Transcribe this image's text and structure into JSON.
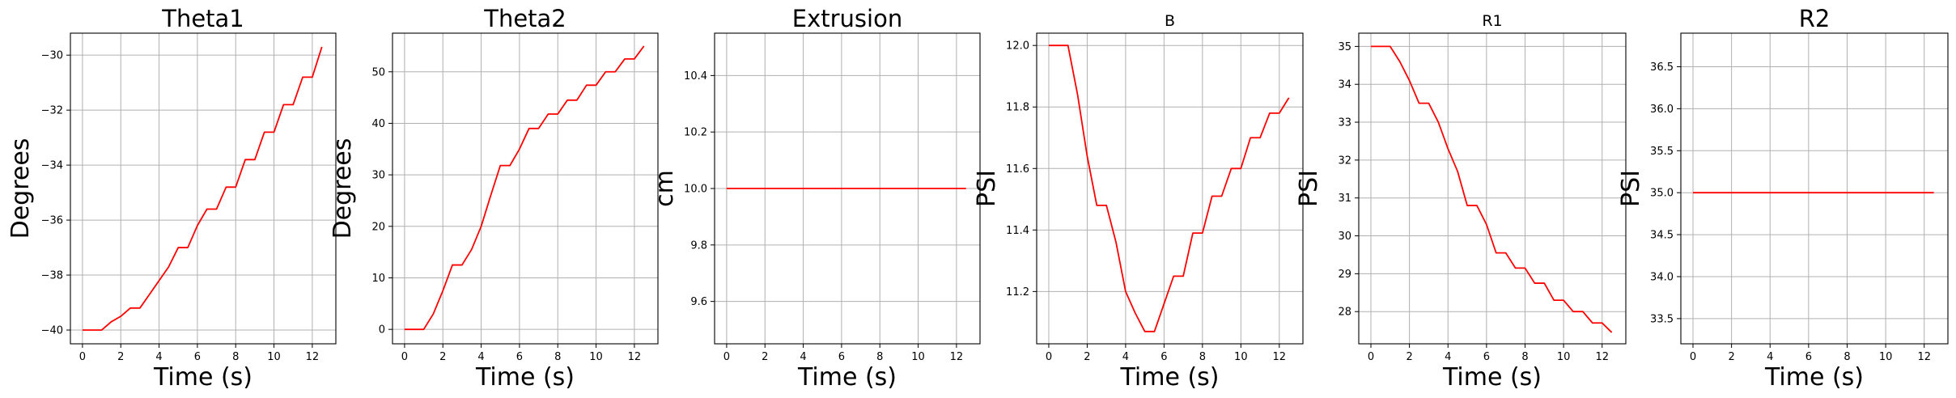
{
  "chart_data": [
    {
      "type": "line",
      "title": "Theta1",
      "xlabel": "Time (s)",
      "ylabel": "Degrees",
      "xlim": [
        -0.63,
        13.23
      ],
      "ylim": [
        -40.5,
        -29.2
      ],
      "xticks": [
        0,
        2,
        4,
        6,
        8,
        10,
        12
      ],
      "xtick_labels": [
        "0",
        "2",
        "4",
        "6",
        "8",
        "10",
        "12"
      ],
      "yticks": [
        -40,
        -38,
        -36,
        -34,
        -32,
        -30
      ],
      "ytick_labels": [
        "−40",
        "−38",
        "−36",
        "−34",
        "−32",
        "−30"
      ],
      "grid": true,
      "series": [
        {
          "color": "#ff0000",
          "x": [
            0,
            0.5,
            1,
            1.5,
            2,
            2.5,
            3,
            3.5,
            4,
            4.5,
            5,
            5.5,
            6,
            6.5,
            7,
            7.5,
            8,
            8.5,
            9,
            9.5,
            10,
            10.5,
            11,
            11.5,
            12,
            12.5
          ],
          "y": [
            -40,
            -40,
            -40,
            -39.7,
            -39.5,
            -39.2,
            -39.2,
            -38.7,
            -38.2,
            -37.7,
            -37.0,
            -37.0,
            -36.2,
            -35.6,
            -35.6,
            -34.8,
            -34.8,
            -33.8,
            -33.8,
            -32.8,
            -32.8,
            -31.8,
            -31.8,
            -30.8,
            -30.8,
            -29.7
          ]
        }
      ]
    },
    {
      "type": "line",
      "title": "Theta2",
      "xlabel": "Time (s)",
      "ylabel": "Degrees",
      "xlim": [
        -0.63,
        13.23
      ],
      "ylim": [
        -2.8,
        57.5
      ],
      "xticks": [
        0,
        2,
        4,
        6,
        8,
        10,
        12
      ],
      "xtick_labels": [
        "0",
        "2",
        "4",
        "6",
        "8",
        "10",
        "12"
      ],
      "yticks": [
        0,
        10,
        20,
        30,
        40,
        50
      ],
      "ytick_labels": [
        "0",
        "10",
        "20",
        "30",
        "40",
        "50"
      ],
      "grid": true,
      "series": [
        {
          "color": "#ff0000",
          "x": [
            0,
            0.5,
            1,
            1.5,
            2,
            2.5,
            3,
            3.5,
            4,
            4.5,
            5,
            5.5,
            6,
            6.5,
            7,
            7.5,
            8,
            8.5,
            9,
            9.5,
            10,
            10.5,
            11,
            11.5,
            12,
            12.5
          ],
          "y": [
            0,
            0,
            0,
            3,
            7.5,
            12.5,
            12.5,
            15.5,
            20,
            26,
            31.8,
            31.8,
            35,
            39,
            39,
            41.8,
            41.8,
            44.5,
            44.5,
            47.4,
            47.4,
            50,
            50,
            52.5,
            52.5,
            55
          ]
        }
      ]
    },
    {
      "type": "line",
      "title": "Extrusion",
      "xlabel": "Time (s)",
      "ylabel": "cm",
      "xlim": [
        -0.63,
        13.23
      ],
      "ylim": [
        9.45,
        10.55
      ],
      "xticks": [
        0,
        2,
        4,
        6,
        8,
        10,
        12
      ],
      "xtick_labels": [
        "0",
        "2",
        "4",
        "6",
        "8",
        "10",
        "12"
      ],
      "yticks": [
        9.6,
        9.8,
        10.0,
        10.2,
        10.4
      ],
      "ytick_labels": [
        "9.6",
        "9.8",
        "10.0",
        "10.2",
        "10.4"
      ],
      "grid": true,
      "series": [
        {
          "color": "#ff0000",
          "x": [
            0,
            12.5
          ],
          "y": [
            10.0,
            10.0
          ]
        }
      ]
    },
    {
      "type": "line",
      "title": "B",
      "xlabel": "Time (s)",
      "ylabel": "PSI",
      "xlim": [
        -0.63,
        13.23
      ],
      "ylim": [
        11.03,
        12.04
      ],
      "xticks": [
        0,
        2,
        4,
        6,
        8,
        10,
        12
      ],
      "xtick_labels": [
        "0",
        "2",
        "4",
        "6",
        "8",
        "10",
        "12"
      ],
      "yticks": [
        11.2,
        11.4,
        11.6,
        11.8,
        12.0
      ],
      "ytick_labels": [
        "11.2",
        "11.4",
        "11.6",
        "11.8",
        "12.0"
      ],
      "grid": true,
      "series": [
        {
          "color": "#ff0000",
          "x": [
            0,
            0.5,
            1,
            1.5,
            2,
            2.5,
            3,
            3.5,
            4,
            4.5,
            5,
            5.5,
            6,
            6.5,
            7,
            7.5,
            8,
            8.5,
            9,
            9.5,
            10,
            10.5,
            11,
            11.5,
            12,
            12.5
          ],
          "y": [
            12.0,
            12.0,
            12.0,
            11.84,
            11.64,
            11.48,
            11.48,
            11.36,
            11.2,
            11.13,
            11.07,
            11.07,
            11.16,
            11.25,
            11.25,
            11.39,
            11.39,
            11.51,
            11.51,
            11.6,
            11.6,
            11.7,
            11.7,
            11.78,
            11.78,
            11.83
          ]
        }
      ]
    },
    {
      "type": "line",
      "title": "R1",
      "xlabel": "Time (s)",
      "ylabel": "PSI",
      "xlim": [
        -0.63,
        13.23
      ],
      "ylim": [
        27.15,
        35.35
      ],
      "xticks": [
        0,
        2,
        4,
        6,
        8,
        10,
        12
      ],
      "xtick_labels": [
        "0",
        "2",
        "4",
        "6",
        "8",
        "10",
        "12"
      ],
      "yticks": [
        28,
        29,
        30,
        31,
        32,
        33,
        34,
        35
      ],
      "ytick_labels": [
        "28",
        "29",
        "30",
        "31",
        "32",
        "33",
        "34",
        "35"
      ],
      "grid": true,
      "series": [
        {
          "color": "#ff0000",
          "x": [
            0,
            0.5,
            1,
            1.5,
            2,
            2.5,
            3,
            3.5,
            4,
            4.5,
            5,
            5.5,
            6,
            6.5,
            7,
            7.5,
            8,
            8.5,
            9,
            9.5,
            10,
            10.5,
            11,
            11.5,
            12,
            12.5
          ],
          "y": [
            35,
            35,
            35,
            34.6,
            34.1,
            33.5,
            33.5,
            33.0,
            32.3,
            31.7,
            30.8,
            30.8,
            30.3,
            29.55,
            29.55,
            29.15,
            29.15,
            28.75,
            28.75,
            28.3,
            28.3,
            28.0,
            28.0,
            27.7,
            27.7,
            27.45
          ]
        }
      ]
    },
    {
      "type": "line",
      "title": "R2",
      "xlabel": "Time (s)",
      "ylabel": "PSI",
      "xlim": [
        -0.63,
        13.23
      ],
      "ylim": [
        33.2,
        36.9
      ],
      "xticks": [
        0,
        2,
        4,
        6,
        8,
        10,
        12
      ],
      "xtick_labels": [
        "0",
        "2",
        "4",
        "6",
        "8",
        "10",
        "12"
      ],
      "yticks": [
        33.5,
        34.0,
        34.5,
        35.0,
        35.5,
        36.0,
        36.5
      ],
      "ytick_labels": [
        "33.5",
        "34.0",
        "34.5",
        "35.0",
        "35.5",
        "36.0",
        "36.5"
      ],
      "grid": true,
      "series": [
        {
          "color": "#ff0000",
          "x": [
            0,
            12.5
          ],
          "y": [
            35.0,
            35.0
          ]
        }
      ]
    }
  ]
}
